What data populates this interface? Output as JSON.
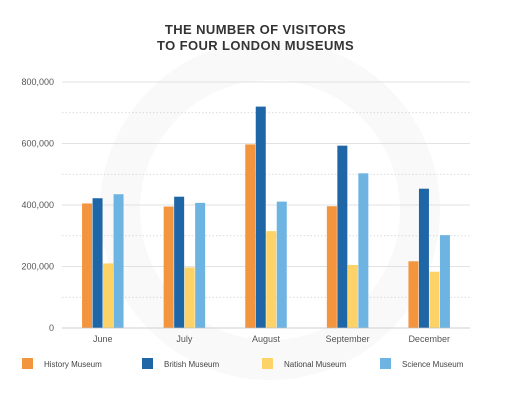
{
  "chart_data": {
    "type": "bar",
    "title_lines": [
      "THE NUMBER OF VISITORS",
      "TO FOUR LONDON MUSEUMS"
    ],
    "categories": [
      "June",
      "July",
      "August",
      "September",
      "December"
    ],
    "series": [
      {
        "name": "History Museum",
        "color": "#f3953f",
        "values": [
          405000,
          395000,
          597000,
          396000,
          217000
        ]
      },
      {
        "name": "British Museum",
        "color": "#1f66a7",
        "values": [
          422000,
          427000,
          720000,
          593000,
          453000
        ]
      },
      {
        "name": "National Museum",
        "color": "#fdd267",
        "values": [
          210000,
          197000,
          315000,
          205000,
          183000
        ]
      },
      {
        "name": "Science Museum",
        "color": "#6db4e3",
        "values": [
          435000,
          407000,
          411000,
          503000,
          302000
        ]
      }
    ],
    "ylim": [
      0,
      800000
    ],
    "yticks": [
      "0",
      "200,000",
      "400,000",
      "600,000",
      "800,000"
    ],
    "ytick_values": [
      0,
      200000,
      400000,
      600000,
      800000
    ],
    "grid": true,
    "legend_position": "bottom"
  }
}
